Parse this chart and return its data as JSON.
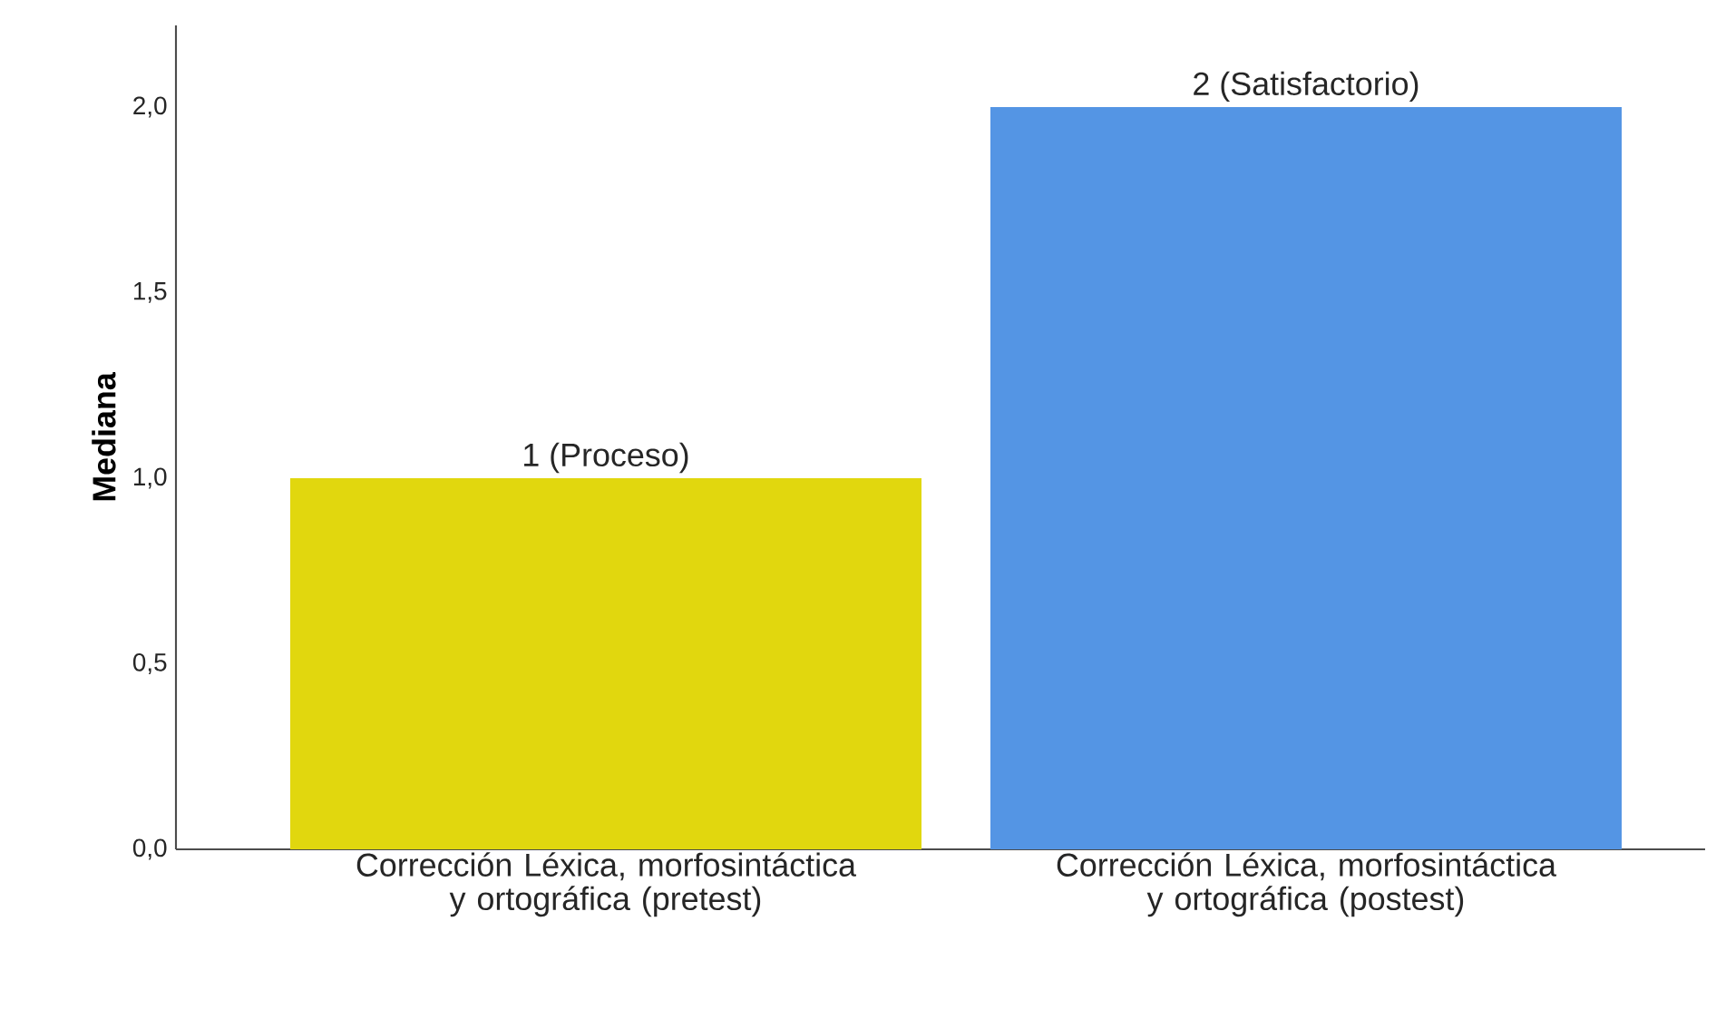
{
  "chart_data": {
    "type": "bar",
    "ylabel": "Mediana",
    "categories": [
      "Corrección Léxica, morfosintáctica y ortográfica (pretest)",
      "Corrección Léxica, morfosintáctica y ortográfica (postest)"
    ],
    "values": [
      1,
      2
    ],
    "colors": [
      "#e1d70e",
      "#5495e4"
    ],
    "value_labels": [
      "1 (Proceso)",
      "2 (Satisfactorio)"
    ],
    "ylim": [
      0,
      2.22
    ],
    "yticks": [
      {
        "value": 0,
        "label": "0,0"
      },
      {
        "value": 0.5,
        "label": "0,5"
      },
      {
        "value": 1,
        "label": "1,0"
      },
      {
        "value": 1.5,
        "label": "1,5"
      },
      {
        "value": 2,
        "label": "2,0"
      }
    ],
    "grid": false
  }
}
